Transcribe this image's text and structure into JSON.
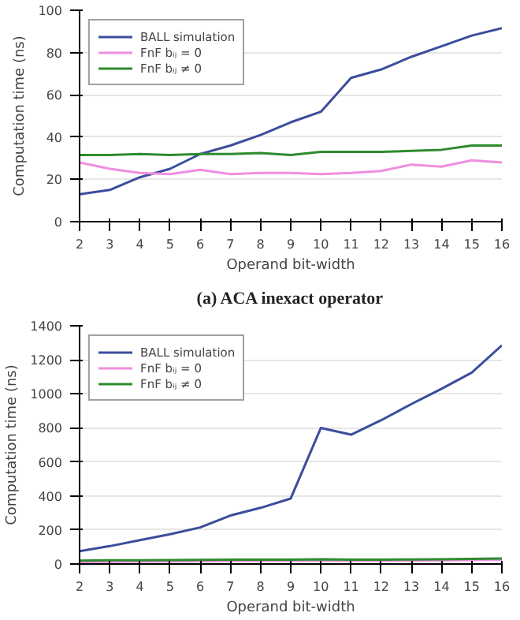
{
  "chart_data": [
    {
      "type": "line",
      "title": "(a) ACA inexact operator",
      "xlabel": "Operand bit-width",
      "ylabel": "Computation time (ns)",
      "x": [
        2,
        3,
        4,
        5,
        6,
        7,
        8,
        9,
        10,
        11,
        12,
        13,
        14,
        15,
        16
      ],
      "xlim": [
        2,
        16
      ],
      "xticks": [
        2,
        3,
        4,
        5,
        6,
        7,
        8,
        9,
        10,
        11,
        12,
        13,
        14,
        15,
        16
      ],
      "ylim": [
        0,
        100
      ],
      "yticks": [
        0,
        20,
        40,
        60,
        80,
        100
      ],
      "grid": "y",
      "legend": "top left",
      "line_style": "solid",
      "series": [
        {
          "name": "BALL simulation",
          "color": "#3c4d9c",
          "values": [
            13,
            15,
            21,
            25,
            32,
            36,
            41,
            47,
            52,
            68,
            72,
            78,
            83,
            88,
            91.5
          ]
        },
        {
          "name": "FnF bᵢⱼ = 0",
          "color": "#f08ee0",
          "values": [
            28,
            25,
            23,
            22.5,
            24.5,
            22.5,
            23,
            23,
            22.5,
            23,
            24,
            27,
            26,
            29,
            28
          ]
        },
        {
          "name": "FnF bᵢⱼ ≠ 0",
          "color": "#2e8b2e",
          "values": [
            31.5,
            31.5,
            32,
            31.5,
            32,
            32,
            32.5,
            31.5,
            33,
            33,
            33,
            33.5,
            34,
            36,
            36
          ]
        }
      ]
    },
    {
      "type": "line",
      "xlabel": "Operand bit-width",
      "ylabel": "Computation time (ns)",
      "x": [
        2,
        3,
        4,
        5,
        6,
        7,
        8,
        9,
        10,
        11,
        12,
        13,
        14,
        15,
        16
      ],
      "xlim": [
        2,
        16
      ],
      "xticks": [
        2,
        3,
        4,
        5,
        6,
        7,
        8,
        9,
        10,
        11,
        12,
        13,
        14,
        15,
        16
      ],
      "ylim": [
        0,
        1400
      ],
      "yticks": [
        0,
        200,
        400,
        600,
        800,
        1000,
        1200,
        1400
      ],
      "grid": "y",
      "legend": "top left",
      "line_style": "solid",
      "series": [
        {
          "name": "BALL simulation",
          "color": "#3c4d9c",
          "values": [
            75,
            105,
            140,
            175,
            215,
            285,
            330,
            385,
            800,
            760,
            845,
            940,
            1030,
            1125,
            1285
          ]
        },
        {
          "name": "FnF bᵢⱼ = 0",
          "color": "#f08ee0",
          "values": [
            12,
            13,
            14,
            15,
            16,
            17,
            18,
            19,
            21,
            19,
            19,
            20,
            21,
            23,
            25
          ]
        },
        {
          "name": "FnF bᵢⱼ ≠ 0",
          "color": "#2e8b2e",
          "values": [
            20,
            22,
            22,
            23,
            24,
            25,
            25,
            26,
            28,
            26,
            26,
            27,
            28,
            30,
            32
          ]
        }
      ]
    }
  ]
}
